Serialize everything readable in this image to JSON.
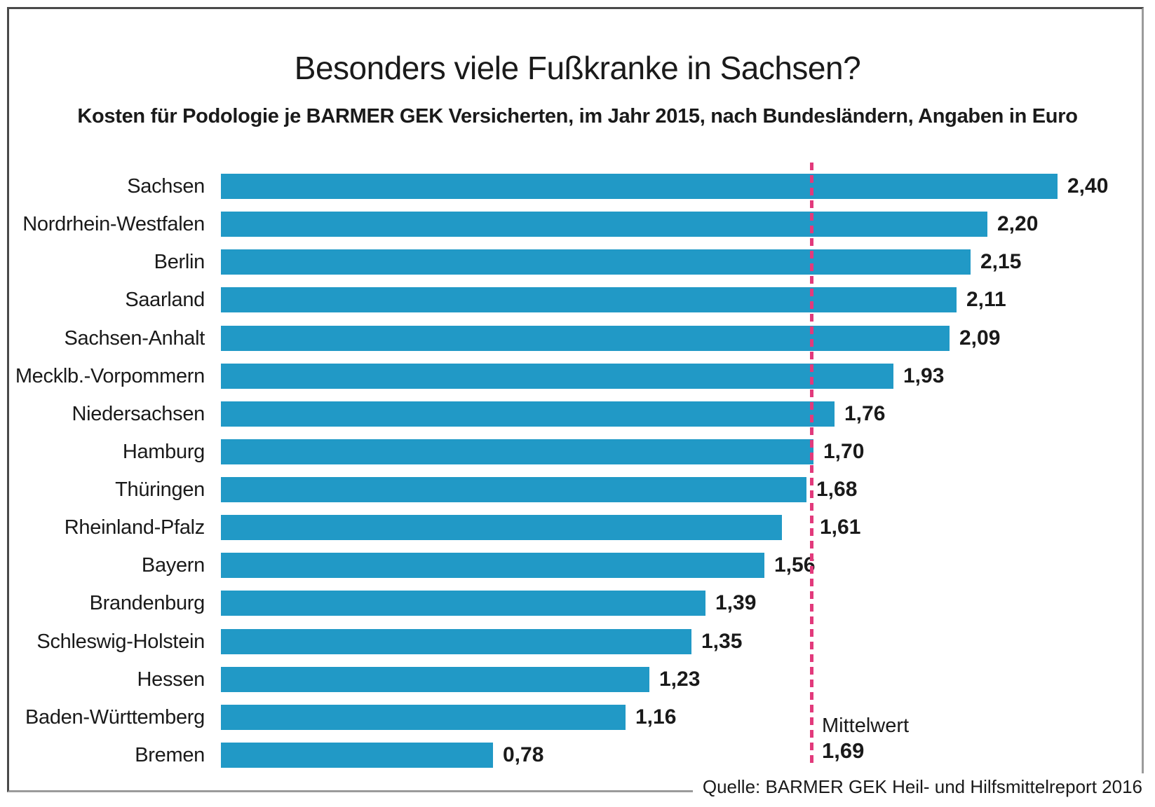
{
  "title": "Besonders viele Fußkranke in Sachsen?",
  "subtitle": "Kosten für Podologie je BARMER GEK Versicherten, im Jahr 2015, nach Bundesländern, Angaben in Euro",
  "source": "Quelle: BARMER GEK Heil- und Hilfsmittelreport 2016",
  "mean": {
    "label": "Mittelwert",
    "value": 1.69,
    "value_label": "1,69"
  },
  "colors": {
    "bar": "#2199c6",
    "mean_line": "#e23a7c",
    "text": "#1a1a1a"
  },
  "chart_data": {
    "type": "bar",
    "orientation": "horizontal",
    "title": "Besonders viele Fußkranke in Sachsen?",
    "subtitle": "Kosten für Podologie je BARMER GEK Versicherten, im Jahr 2015, nach Bundesländern, Angaben in Euro",
    "unit": "Euro",
    "categories": [
      "Sachsen",
      "Nordrhein-Westfalen",
      "Berlin",
      "Saarland",
      "Sachsen-Anhalt",
      "Mecklb.-Vorpommern",
      "Niedersachsen",
      "Hamburg",
      "Thüringen",
      "Rheinland-Pfalz",
      "Bayern",
      "Brandenburg",
      "Schleswig-Holstein",
      "Hessen",
      "Baden-Württemberg",
      "Bremen"
    ],
    "values": [
      2.4,
      2.2,
      2.15,
      2.11,
      2.09,
      1.93,
      1.76,
      1.7,
      1.68,
      1.61,
      1.56,
      1.39,
      1.35,
      1.23,
      1.16,
      0.78
    ],
    "value_labels": [
      "2,40",
      "2,20",
      "2,15",
      "2,11",
      "2,09",
      "1,93",
      "1,76",
      "1,70",
      "1,68",
      "1,61",
      "1,56",
      "1,39",
      "1,35",
      "1,23",
      "1,16",
      "0,78"
    ],
    "mean": 1.69,
    "mean_label": "Mittelwert",
    "xlim": [
      0,
      2.64
    ],
    "grid": false,
    "legend": false
  }
}
